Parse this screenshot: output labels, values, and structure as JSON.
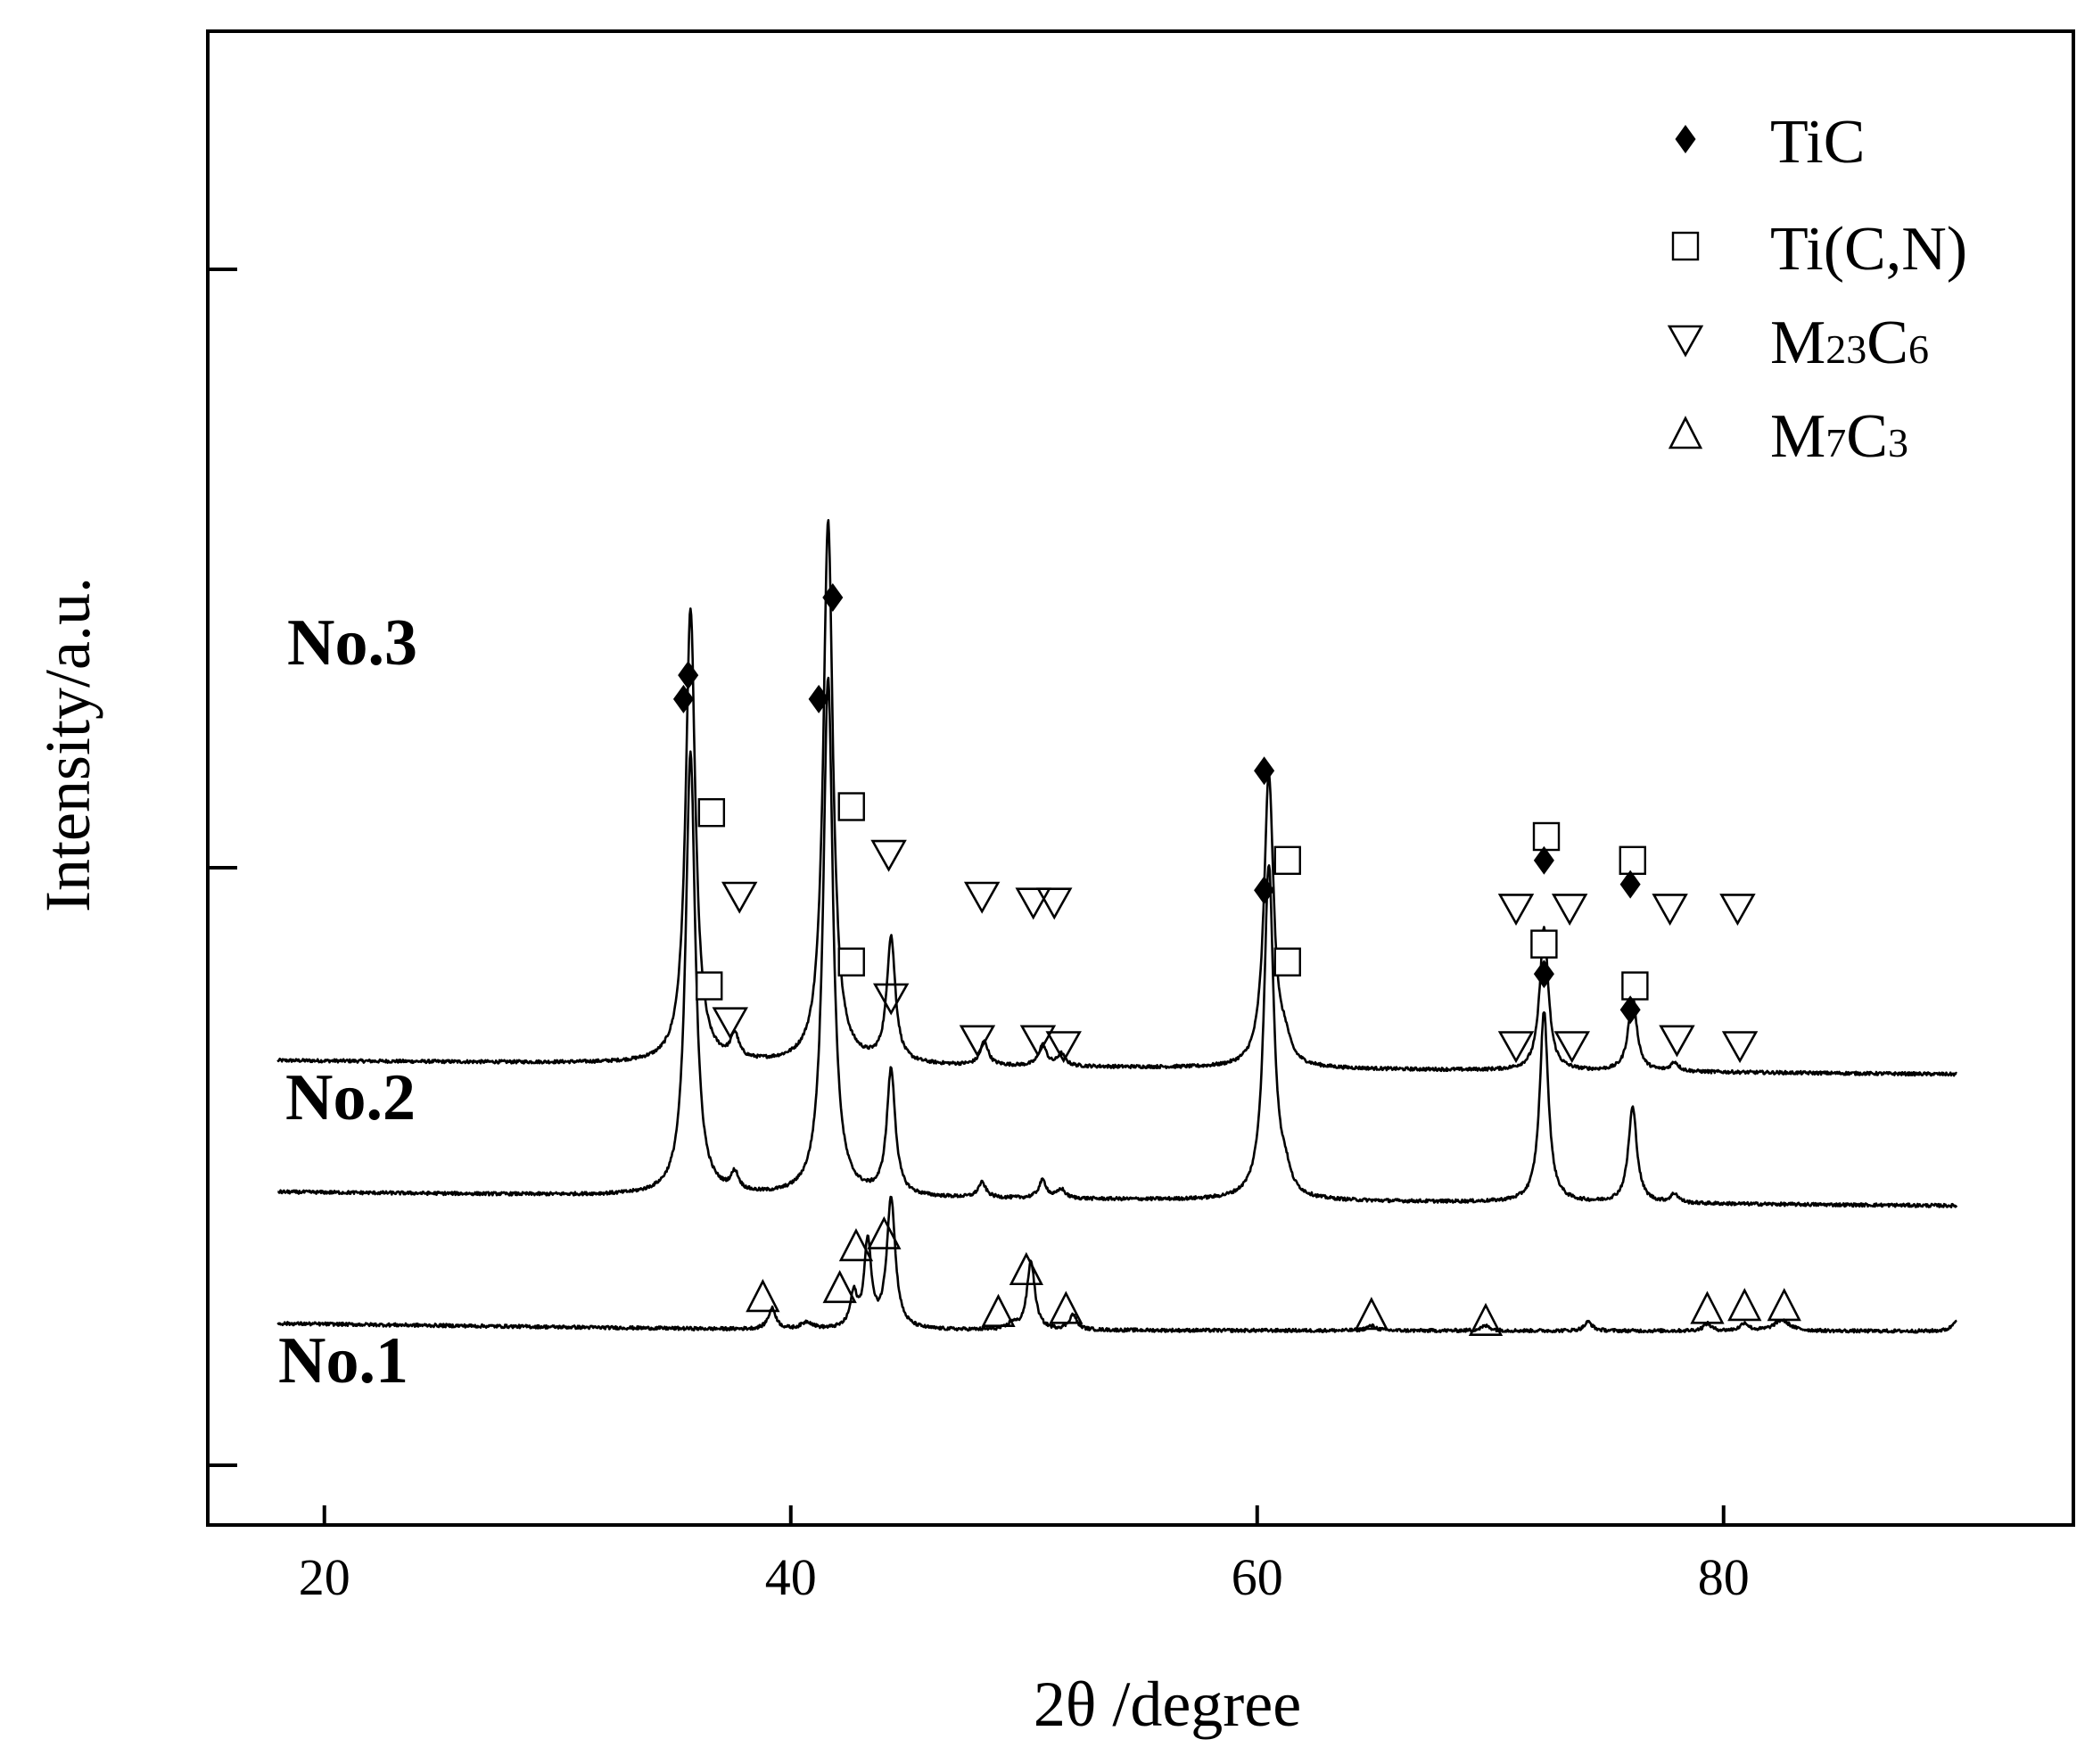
{
  "chart_data": {
    "type": "line",
    "xlabel": "2θ /degree",
    "ylabel": "Intensity/a.u.",
    "xlim": [
      15,
      95
    ],
    "x_ticks": [
      20,
      40,
      60,
      80
    ],
    "y_ticks_labeled": false,
    "grid": false,
    "legend_position": "top-right",
    "legend": [
      {
        "symbol": "diamond",
        "label": "TiC"
      },
      {
        "symbol": "square",
        "label": "Ti(C,N)"
      },
      {
        "symbol": "triangle-down",
        "label": "M",
        "sub1": "23",
        "mid": "C",
        "sub2": "6"
      },
      {
        "symbol": "triangle-up",
        "label": "M",
        "sub1": "7",
        "mid": "C",
        "sub2": "3"
      }
    ],
    "series": [
      {
        "name": "No.3",
        "x_range": [
          18,
          90
        ],
        "baseline": [
          [
            18,
            22.5
          ],
          [
            40,
            21.8
          ],
          [
            90,
            20.2
          ]
        ],
        "peaks": [
          {
            "x": 35.7,
            "h": 76.0,
            "w": 0.25
          },
          {
            "x": 37.6,
            "h": 4.0,
            "w": 0.2
          },
          {
            "x": 41.6,
            "h": 91.0,
            "w": 0.25
          },
          {
            "x": 44.3,
            "h": 21.0,
            "w": 0.22
          },
          {
            "x": 48.3,
            "h": 4.0,
            "w": 0.2
          },
          {
            "x": 50.8,
            "h": 3.5,
            "w": 0.2
          },
          {
            "x": 51.6,
            "h": 2.0,
            "w": 0.2
          },
          {
            "x": 60.5,
            "h": 49.0,
            "w": 0.25
          },
          {
            "x": 61.2,
            "h": 3.0,
            "w": 0.25
          },
          {
            "x": 72.3,
            "h": 24.0,
            "w": 0.22
          },
          {
            "x": 76.1,
            "h": 12.5,
            "w": 0.22
          },
          {
            "x": 77.9,
            "h": 1.5,
            "w": 0.2
          }
        ],
        "markers": [
          {
            "x": 35.6,
            "y": 87,
            "symbol": "diamond"
          },
          {
            "x": 36.6,
            "y": 64,
            "symbol": "square"
          },
          {
            "x": 37.8,
            "y": 50,
            "symbol": "triangle-down"
          },
          {
            "x": 41.8,
            "y": 100,
            "symbol": "diamond"
          },
          {
            "x": 42.6,
            "y": 65,
            "symbol": "square"
          },
          {
            "x": 44.2,
            "y": 57,
            "symbol": "triangle-down"
          },
          {
            "x": 48.2,
            "y": 50,
            "symbol": "triangle-down"
          },
          {
            "x": 50.4,
            "y": 49,
            "symbol": "triangle-down"
          },
          {
            "x": 51.3,
            "y": 49,
            "symbol": "triangle-down"
          },
          {
            "x": 60.3,
            "y": 71,
            "symbol": "diamond"
          },
          {
            "x": 61.3,
            "y": 56,
            "symbol": "square"
          },
          {
            "x": 71.1,
            "y": 48,
            "symbol": "triangle-down"
          },
          {
            "x": 72.4,
            "y": 60,
            "symbol": "square"
          },
          {
            "x": 72.3,
            "y": 56,
            "symbol": "diamond"
          },
          {
            "x": 73.4,
            "y": 48,
            "symbol": "triangle-down"
          },
          {
            "x": 76.1,
            "y": 56,
            "symbol": "square"
          },
          {
            "x": 76.0,
            "y": 52,
            "symbol": "diamond"
          },
          {
            "x": 77.7,
            "y": 48,
            "symbol": "triangle-down"
          },
          {
            "x": 80.6,
            "y": 48,
            "symbol": "triangle-down"
          }
        ]
      },
      {
        "name": "No.2",
        "x_range": [
          18,
          90
        ],
        "baseline": [
          [
            18,
            0.5
          ],
          [
            40,
            -0.4
          ],
          [
            90,
            -1.8
          ]
        ],
        "peaks": [
          {
            "x": 35.7,
            "h": 74.0,
            "w": 0.25
          },
          {
            "x": 37.6,
            "h": 3.0,
            "w": 0.2
          },
          {
            "x": 41.6,
            "h": 87.0,
            "w": 0.25
          },
          {
            "x": 44.3,
            "h": 21.0,
            "w": 0.22
          },
          {
            "x": 48.2,
            "h": 2.5,
            "w": 0.2
          },
          {
            "x": 50.8,
            "h": 3.0,
            "w": 0.2
          },
          {
            "x": 51.6,
            "h": 1.5,
            "w": 0.2
          },
          {
            "x": 60.5,
            "h": 56.0,
            "w": 0.25
          },
          {
            "x": 61.2,
            "h": 3.0,
            "w": 0.25
          },
          {
            "x": 72.3,
            "h": 32.0,
            "w": 0.22
          },
          {
            "x": 76.1,
            "h": 16.0,
            "w": 0.22
          },
          {
            "x": 77.9,
            "h": 1.5,
            "w": 0.2
          }
        ],
        "markers": [
          {
            "x": 35.4,
            "y": 83,
            "symbol": "diamond"
          },
          {
            "x": 36.5,
            "y": 35,
            "symbol": "square"
          },
          {
            "x": 37.4,
            "y": 29,
            "symbol": "triangle-down"
          },
          {
            "x": 41.2,
            "y": 83,
            "symbol": "diamond"
          },
          {
            "x": 42.6,
            "y": 39,
            "symbol": "square"
          },
          {
            "x": 44.3,
            "y": 33,
            "symbol": "triangle-down"
          },
          {
            "x": 48.0,
            "y": 26,
            "symbol": "triangle-down"
          },
          {
            "x": 50.6,
            "y": 26,
            "symbol": "triangle-down"
          },
          {
            "x": 51.7,
            "y": 25,
            "symbol": "triangle-down"
          },
          {
            "x": 60.3,
            "y": 51,
            "symbol": "diamond"
          },
          {
            "x": 61.3,
            "y": 39,
            "symbol": "square"
          },
          {
            "x": 71.1,
            "y": 25,
            "symbol": "triangle-down"
          },
          {
            "x": 72.3,
            "y": 42,
            "symbol": "square"
          },
          {
            "x": 72.3,
            "y": 37,
            "symbol": "diamond"
          },
          {
            "x": 73.5,
            "y": 25,
            "symbol": "triangle-down"
          },
          {
            "x": 76.2,
            "y": 35,
            "symbol": "square"
          },
          {
            "x": 76.0,
            "y": 31,
            "symbol": "diamond"
          },
          {
            "x": 78.0,
            "y": 26,
            "symbol": "triangle-down"
          },
          {
            "x": 80.7,
            "y": 25,
            "symbol": "triangle-down"
          }
        ]
      },
      {
        "name": "No.1",
        "x_range": [
          18,
          90
        ],
        "baseline": [
          [
            18,
            -21.5
          ],
          [
            40,
            -22.6
          ],
          [
            90,
            -22.8
          ]
        ],
        "peaks": [
          {
            "x": 39.2,
            "h": 3.5,
            "w": 0.2
          },
          {
            "x": 40.7,
            "h": 1.2,
            "w": 0.3
          },
          {
            "x": 42.7,
            "h": 5.5,
            "w": 0.18
          },
          {
            "x": 43.3,
            "h": 14.5,
            "w": 0.18
          },
          {
            "x": 44.3,
            "h": 22.0,
            "w": 0.22
          },
          {
            "x": 49.5,
            "h": 1.0,
            "w": 0.2
          },
          {
            "x": 50.3,
            "h": 11.5,
            "w": 0.2
          },
          {
            "x": 52.1,
            "h": 2.5,
            "w": 0.2
          },
          {
            "x": 64.9,
            "h": 0.8,
            "w": 0.25
          },
          {
            "x": 69.8,
            "h": 0.8,
            "w": 0.25
          },
          {
            "x": 74.2,
            "h": 1.5,
            "w": 0.2
          },
          {
            "x": 79.3,
            "h": 1.2,
            "w": 0.2
          },
          {
            "x": 80.9,
            "h": 1.3,
            "w": 0.2
          },
          {
            "x": 82.5,
            "h": 1.8,
            "w": 0.4
          },
          {
            "x": 90.0,
            "h": 2.0,
            "w": 0.2
          }
        ],
        "markers": [
          {
            "x": 38.8,
            "y": -17,
            "symbol": "triangle-up"
          },
          {
            "x": 42.1,
            "y": -15.5,
            "symbol": "triangle-up"
          },
          {
            "x": 42.8,
            "y": -8.5,
            "symbol": "triangle-up"
          },
          {
            "x": 44.0,
            "y": -6.5,
            "symbol": "triangle-up"
          },
          {
            "x": 48.9,
            "y": -19.5,
            "symbol": "triangle-up"
          },
          {
            "x": 50.1,
            "y": -12.5,
            "symbol": "triangle-up"
          },
          {
            "x": 51.8,
            "y": -19,
            "symbol": "triangle-up"
          },
          {
            "x": 64.9,
            "y": -20,
            "symbol": "triangle-up"
          },
          {
            "x": 69.8,
            "y": -21,
            "symbol": "triangle-up"
          },
          {
            "x": 79.3,
            "y": -19,
            "symbol": "triangle-up"
          },
          {
            "x": 80.9,
            "y": -18.5,
            "symbol": "triangle-up"
          },
          {
            "x": 82.6,
            "y": -18.5,
            "symbol": "triangle-up"
          }
        ]
      }
    ]
  }
}
